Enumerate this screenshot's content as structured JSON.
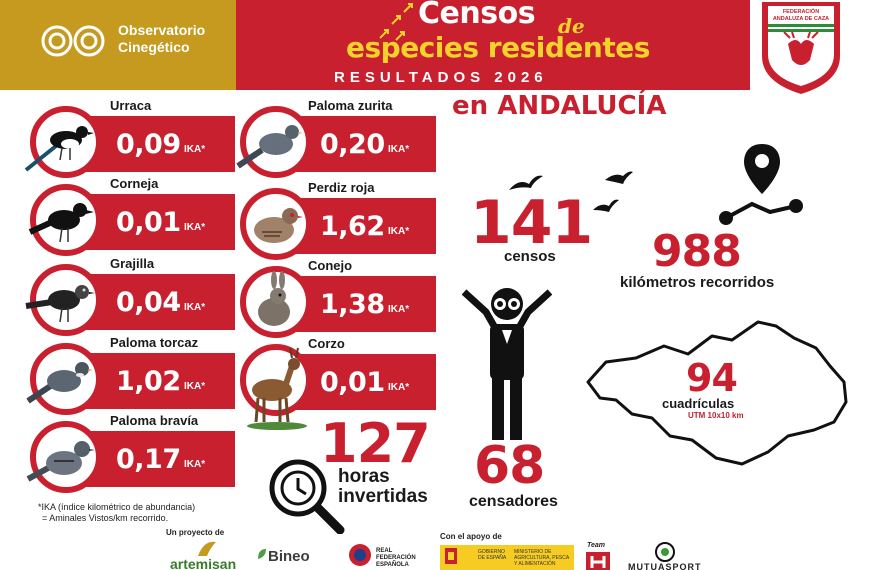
{
  "header": {
    "org_name": "Observatorio\nCinegético",
    "title_main": "Censos",
    "title_de": "de",
    "title_sub": "especies residentes",
    "results": "RESULTADOS 2026",
    "region": "en ANDALUCÍA",
    "fed_name": "FEDERACIÓN ANDALUZA DE CAZA"
  },
  "species": [
    {
      "name": "Urraca",
      "value": "0,09",
      "unit": "IKA*",
      "icon": "magpie-icon"
    },
    {
      "name": "Corneja",
      "value": "0,01",
      "unit": "IKA*",
      "icon": "crow-icon"
    },
    {
      "name": "Grajilla",
      "value": "0,04",
      "unit": "IKA*",
      "icon": "jackdaw-icon"
    },
    {
      "name": "Paloma torcaz",
      "value": "1,02",
      "unit": "IKA*",
      "icon": "wood-pigeon-icon"
    },
    {
      "name": "Paloma bravía",
      "value": "0,17",
      "unit": "IKA*",
      "icon": "rock-dove-icon"
    },
    {
      "name": "Paloma zurita",
      "value": "0,20",
      "unit": "IKA*",
      "icon": "stock-dove-icon"
    },
    {
      "name": "Perdiz roja",
      "value": "1,62",
      "unit": "IKA*",
      "icon": "partridge-icon"
    },
    {
      "name": "Conejo",
      "value": "1,38",
      "unit": "IKA*",
      "icon": "rabbit-icon"
    },
    {
      "name": "Corzo",
      "value": "0,01",
      "unit": "IKA*",
      "icon": "roe-deer-icon"
    }
  ],
  "footnote": {
    "line1": "*IKA (índice kilométrico de abundancia)",
    "line2": "= Aminales Vistos/km recorrido."
  },
  "stats": {
    "censos_value": "141",
    "censos_label": "censos",
    "km_value": "988",
    "km_label": "kilómetros recorridos",
    "cuadriculas_value": "94",
    "cuadriculas_label": "cuadrículas",
    "cuadriculas_sub": "UTM 10x10 km",
    "horas_value": "127",
    "horas_label_1": "horas",
    "horas_label_2": "invertidas",
    "censadores_value": "68",
    "censadores_label": "censadores"
  },
  "footer": {
    "project_label": "Un proyecto de",
    "support_label": "Con el apoyo de",
    "sponsors": [
      "artemisan",
      "Bineo",
      "REAL FEDERACIÓN ESPAÑOLA",
      "GOBIERNO DE ESPAÑA",
      "MINISTERIO DE AGRICULTURA, PESCA Y ALIMENTACIÓN",
      "Team",
      "MUTUASPORT"
    ]
  },
  "colors": {
    "red": "#c8202e",
    "gold": "#c59a1e",
    "yellow": "#f2d22b"
  }
}
